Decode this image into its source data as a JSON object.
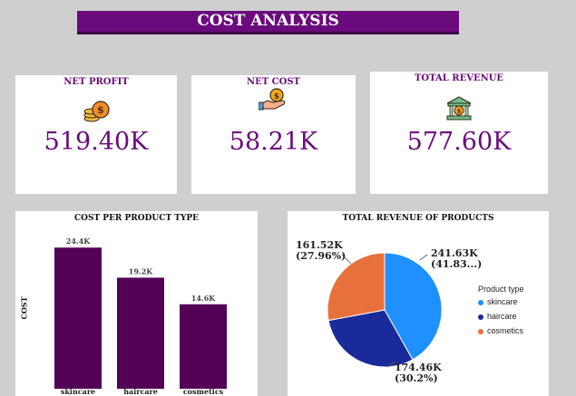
{
  "header": {
    "title": "COST ANALYSIS"
  },
  "kpis": [
    {
      "label": "NET PROFIT",
      "value": "519.40K",
      "icon": "coins-icon"
    },
    {
      "label": "NET COST",
      "value": "58.21K",
      "icon": "hand-coin-icon"
    },
    {
      "label": "TOTAL REVENUE",
      "value": "577.60K",
      "icon": "bank-icon"
    }
  ],
  "colors": {
    "accent": "#6b0a7d",
    "bar": "#530057",
    "skincare": "#1e90ff",
    "haircare": "#1a2a9a",
    "cosmetics": "#e8703a"
  },
  "chart_data": [
    {
      "type": "bar",
      "title": "COST PER PRODUCT TYPE",
      "xlabel": "",
      "ylabel": "COST",
      "categories": [
        "skincare",
        "haircare",
        "cosmetics"
      ],
      "values": [
        24.4,
        19.2,
        14.6
      ],
      "data_labels": [
        "24.4K",
        "19.2K",
        "14.6K"
      ],
      "ylim": [
        0,
        26
      ]
    },
    {
      "type": "pie",
      "title": "TOTAL REVENUE OF PRODUCTS",
      "legend_title": "Product type",
      "legend_position": "right",
      "categories": [
        "skincare",
        "haircare",
        "cosmetics"
      ],
      "values": [
        241.63,
        174.46,
        161.52
      ],
      "data_labels": [
        [
          "241.63K",
          "(41.83...)"
        ],
        [
          "174.46K",
          "(30.2%)"
        ],
        [
          "161.52K",
          "(27.96%)"
        ]
      ]
    }
  ]
}
